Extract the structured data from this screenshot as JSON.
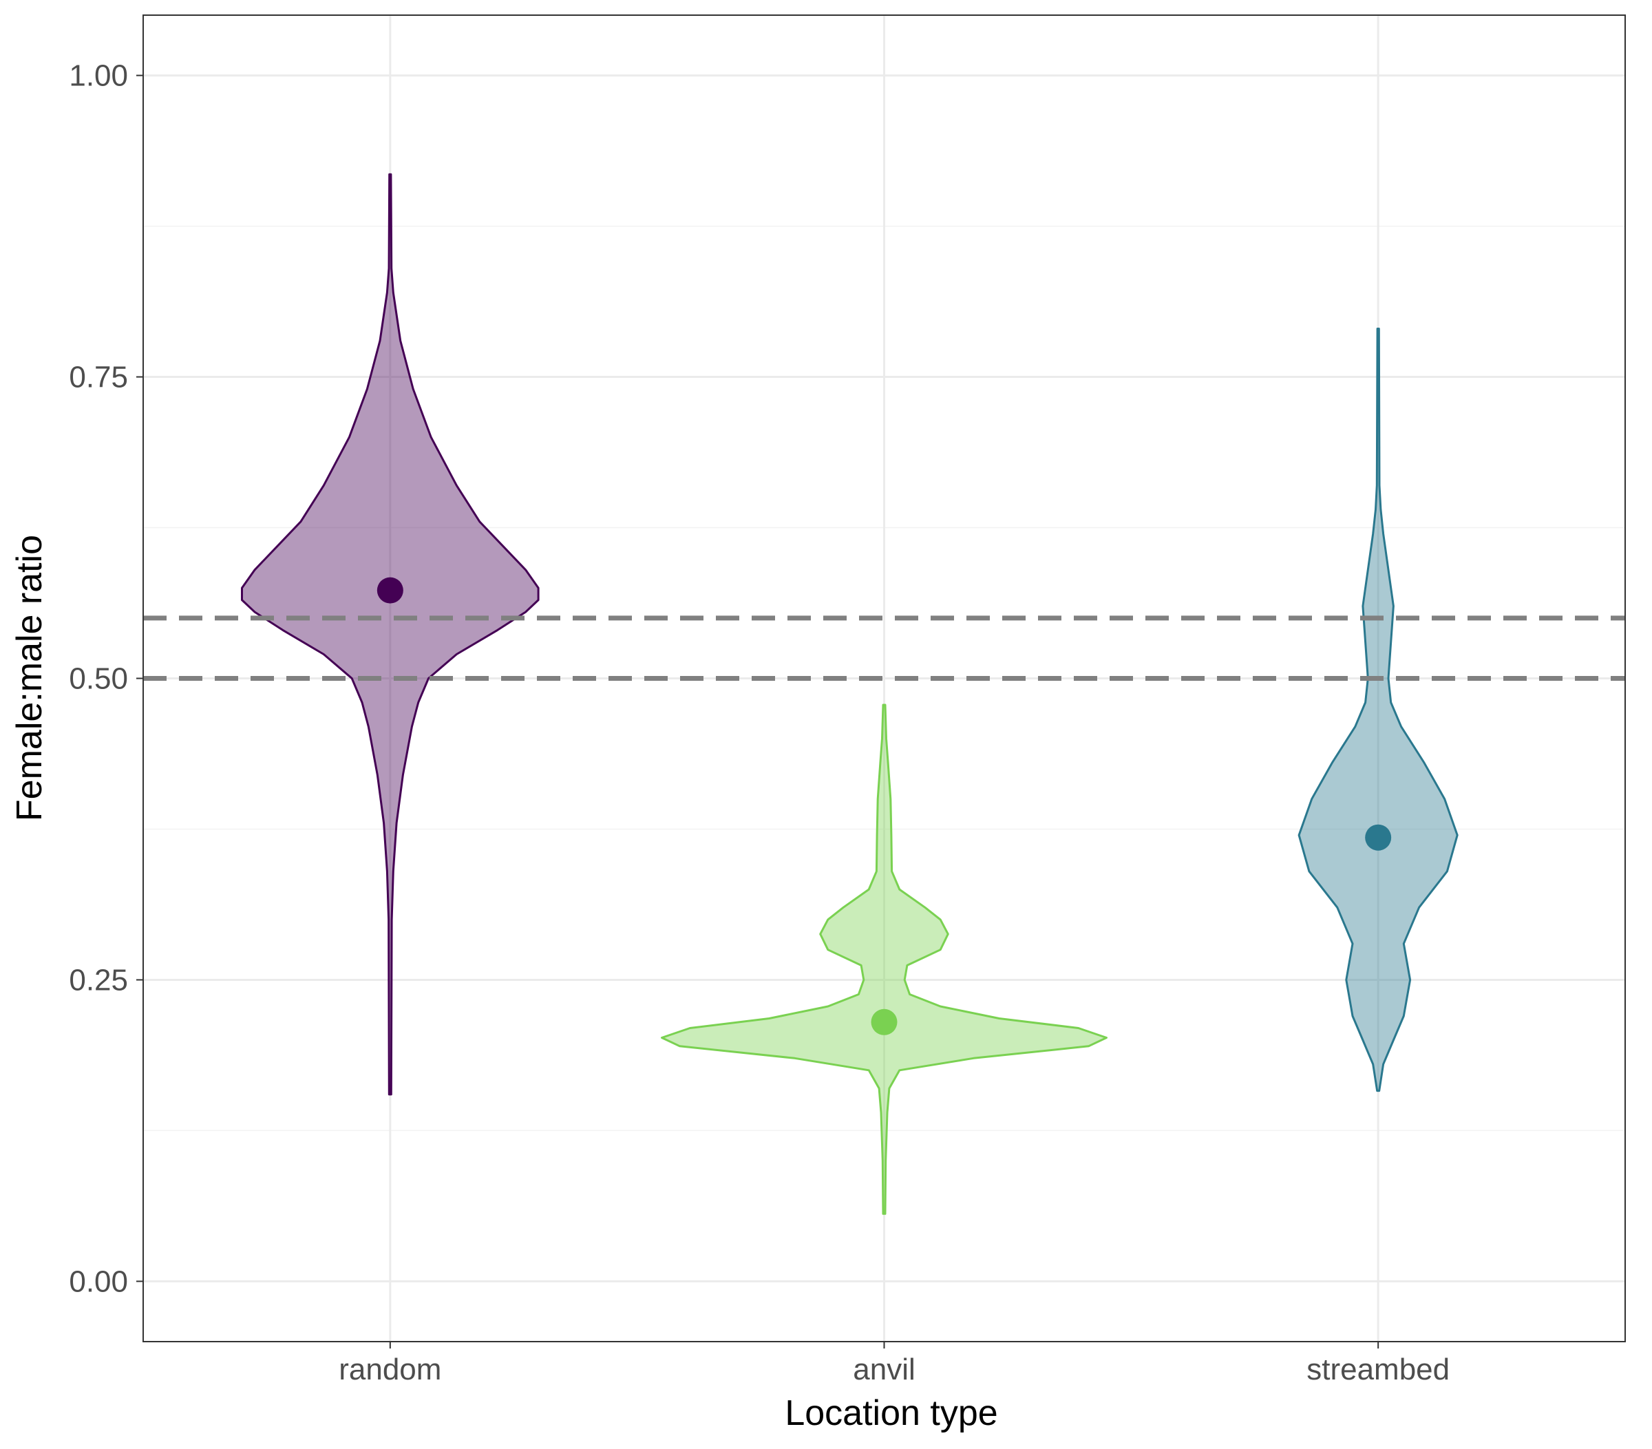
{
  "chart_data": {
    "type": "violin",
    "title": "",
    "xlabel": "Location type",
    "ylabel": "Female:male ratio",
    "ylim": [
      -0.05,
      1.05
    ],
    "yticks": [
      "0.00",
      "0.25",
      "0.50",
      "0.75",
      "1.00"
    ],
    "ytick_values": [
      0.0,
      0.25,
      0.5,
      0.75,
      1.0
    ],
    "grid": true,
    "legend": "none",
    "reference_lines": [
      {
        "y": 0.5,
        "style": "dashed",
        "color": "#808080"
      },
      {
        "y": 0.55,
        "style": "dashed",
        "color": "#808080"
      }
    ],
    "categories": [
      "random",
      "anvil",
      "streambed"
    ],
    "series": [
      {
        "category": "random",
        "color": "#440154",
        "point": 0.573,
        "min": 0.155,
        "max": 0.918,
        "density": [
          [
            0.155,
            0.004
          ],
          [
            0.3,
            0.006
          ],
          [
            0.34,
            0.012
          ],
          [
            0.38,
            0.025
          ],
          [
            0.42,
            0.05
          ],
          [
            0.46,
            0.085
          ],
          [
            0.48,
            0.11
          ],
          [
            0.5,
            0.15
          ],
          [
            0.52,
            0.26
          ],
          [
            0.54,
            0.42
          ],
          [
            0.555,
            0.53
          ],
          [
            0.565,
            0.58
          ],
          [
            0.575,
            0.58
          ],
          [
            0.59,
            0.53
          ],
          [
            0.61,
            0.44
          ],
          [
            0.63,
            0.35
          ],
          [
            0.66,
            0.26
          ],
          [
            0.7,
            0.16
          ],
          [
            0.74,
            0.09
          ],
          [
            0.78,
            0.04
          ],
          [
            0.82,
            0.012
          ],
          [
            0.84,
            0.005
          ],
          [
            0.918,
            0.003
          ]
        ]
      },
      {
        "category": "anvil",
        "color": "#7ad151",
        "point": 0.215,
        "min": 0.056,
        "max": 0.478,
        "density": [
          [
            0.056,
            0.004
          ],
          [
            0.1,
            0.006
          ],
          [
            0.14,
            0.012
          ],
          [
            0.16,
            0.02
          ],
          [
            0.175,
            0.06
          ],
          [
            0.185,
            0.35
          ],
          [
            0.195,
            0.8
          ],
          [
            0.202,
            0.87
          ],
          [
            0.21,
            0.76
          ],
          [
            0.218,
            0.45
          ],
          [
            0.228,
            0.22
          ],
          [
            0.238,
            0.1
          ],
          [
            0.25,
            0.08
          ],
          [
            0.262,
            0.09
          ],
          [
            0.275,
            0.22
          ],
          [
            0.288,
            0.25
          ],
          [
            0.3,
            0.22
          ],
          [
            0.31,
            0.16
          ],
          [
            0.325,
            0.06
          ],
          [
            0.34,
            0.03
          ],
          [
            0.37,
            0.028
          ],
          [
            0.4,
            0.025
          ],
          [
            0.43,
            0.015
          ],
          [
            0.45,
            0.008
          ],
          [
            0.478,
            0.004
          ]
        ]
      },
      {
        "category": "streambed",
        "color": "#2a788e",
        "point": 0.368,
        "min": 0.158,
        "max": 0.79,
        "density": [
          [
            0.158,
            0.004
          ],
          [
            0.18,
            0.02
          ],
          [
            0.2,
            0.06
          ],
          [
            0.22,
            0.1
          ],
          [
            0.25,
            0.125
          ],
          [
            0.28,
            0.1
          ],
          [
            0.31,
            0.16
          ],
          [
            0.34,
            0.27
          ],
          [
            0.37,
            0.31
          ],
          [
            0.4,
            0.26
          ],
          [
            0.43,
            0.18
          ],
          [
            0.46,
            0.09
          ],
          [
            0.48,
            0.05
          ],
          [
            0.5,
            0.04
          ],
          [
            0.53,
            0.05
          ],
          [
            0.56,
            0.06
          ],
          [
            0.59,
            0.04
          ],
          [
            0.62,
            0.02
          ],
          [
            0.64,
            0.01
          ],
          [
            0.66,
            0.005
          ],
          [
            0.79,
            0.003
          ]
        ]
      }
    ]
  }
}
